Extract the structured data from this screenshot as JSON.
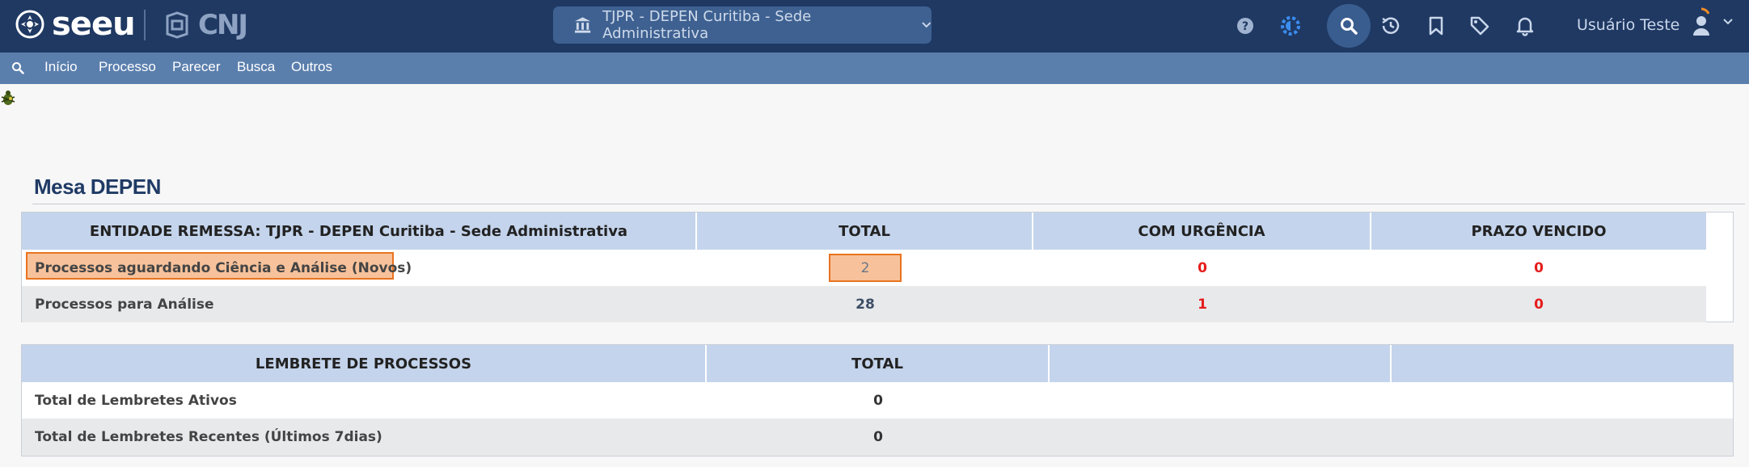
{
  "header": {
    "logo_text": "seeu",
    "cnj_text": "CNJ",
    "unit_selector": "TJPR - DEPEN Curitiba - Sede Administrativa",
    "user_name": "Usuário Teste"
  },
  "menu": {
    "items": [
      "Início",
      "Processo",
      "Parecer",
      "Busca",
      "Outros"
    ]
  },
  "page": {
    "title": "Mesa DEPEN"
  },
  "table1": {
    "headers": [
      "ENTIDADE REMESSA: TJPR - DEPEN Curitiba - Sede Administrativa",
      "TOTAL",
      "COM URGÊNCIA",
      "PRAZO VENCIDO"
    ],
    "rows": [
      {
        "label": "Processos aguardando Ciência e Análise (Novos)",
        "total": "2",
        "urgencia": "0",
        "vencido": "0"
      },
      {
        "label": "Processos para Análise",
        "total": "28",
        "urgencia": "1",
        "vencido": "0"
      }
    ]
  },
  "table2": {
    "headers": [
      "LEMBRETE DE PROCESSOS",
      "TOTAL",
      "",
      ""
    ],
    "rows": [
      {
        "label": "Total de Lembretes Ativos",
        "total": "0"
      },
      {
        "label": "Total de Lembretes Recentes (Últimos 7dias)",
        "total": "0"
      }
    ]
  },
  "colors": {
    "topbar": "#1f3963",
    "menubar": "#5b7fad",
    "table_header": "#c4d4ec",
    "highlight": "#f7c29b",
    "red": "#e51c1c"
  }
}
